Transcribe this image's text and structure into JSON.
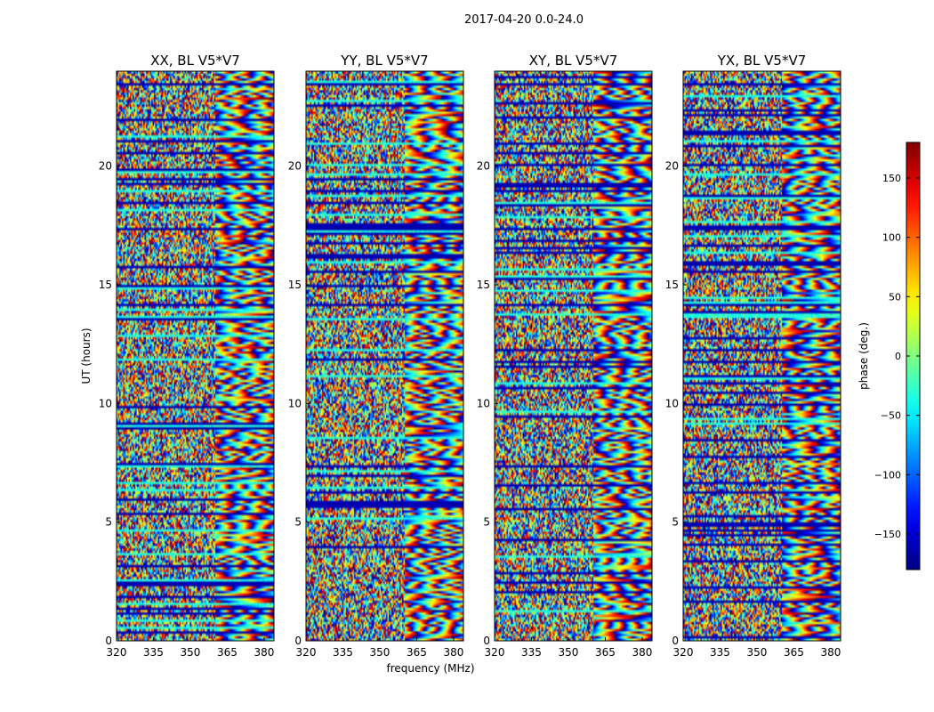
{
  "suptitle": "2017-04-20 0.0-24.0",
  "chart_data": [
    {
      "type": "heatmap",
      "title": "XX, BL V5*V7",
      "pol": "XX"
    },
    {
      "type": "heatmap",
      "title": "YY, BL V5*V7",
      "pol": "YY"
    },
    {
      "type": "heatmap",
      "title": "XY, BL V5*V7",
      "pol": "XY"
    },
    {
      "type": "heatmap",
      "title": "YX, BL V5*V7",
      "pol": "YX"
    }
  ],
  "axes": {
    "xlabel": "frequency (MHz)",
    "ylabel": "UT (hours)",
    "xlim": [
      320,
      384
    ],
    "ylim": [
      0,
      24
    ],
    "xticks": [
      320,
      335,
      350,
      365,
      380
    ],
    "yticks": [
      0,
      5,
      10,
      15,
      20
    ]
  },
  "colorbar": {
    "label": "phase (deg.)",
    "range": [
      -180,
      180
    ],
    "ticks": [
      150,
      100,
      50,
      0,
      -50,
      -100,
      -150
    ],
    "tick_labels": [
      "150",
      "100",
      "50",
      "0",
      "−50",
      "−100",
      "−150"
    ],
    "colormap": "jet"
  }
}
